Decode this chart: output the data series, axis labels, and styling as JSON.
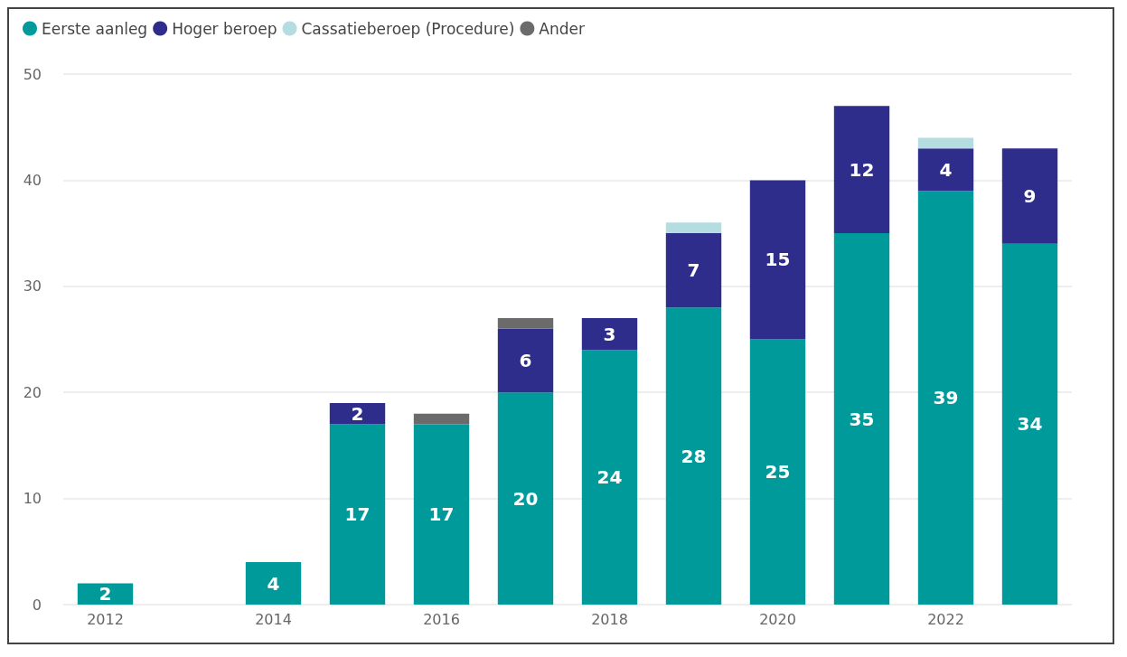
{
  "chart_data": {
    "type": "bar",
    "stacked": true,
    "categories": [
      "2012",
      null,
      "2014",
      null,
      "2016",
      null,
      "2018",
      null,
      "2020",
      null,
      "2022",
      null
    ],
    "series": [
      {
        "name": "Eerste aanleg",
        "color": "#009a9a",
        "values": [
          2,
          null,
          4,
          17,
          17,
          20,
          24,
          28,
          25,
          35,
          39,
          34
        ],
        "value_labels": [
          "2",
          null,
          "4",
          "17",
          "17",
          "20",
          "24",
          "28",
          "25",
          "35",
          "39",
          "34"
        ]
      },
      {
        "name": "Hoger beroep",
        "color": "#2e2d8c",
        "values": [
          null,
          null,
          null,
          2,
          null,
          6,
          3,
          7,
          15,
          12,
          4,
          9
        ],
        "value_labels": [
          null,
          null,
          null,
          "2",
          null,
          "6",
          "3",
          "7",
          "15",
          "12",
          "4",
          "9"
        ]
      },
      {
        "name": "Cassatieberoep (Procedure)",
        "color": "#b3dde0",
        "values": [
          null,
          null,
          null,
          null,
          null,
          null,
          null,
          1,
          null,
          null,
          1,
          null
        ]
      },
      {
        "name": "Ander",
        "color": "#6b6b6b",
        "values": [
          null,
          null,
          null,
          null,
          1,
          1,
          null,
          null,
          null,
          null,
          null,
          null
        ]
      }
    ],
    "ylim": [
      0,
      50
    ],
    "yticks": [
      0,
      10,
      20,
      30,
      40,
      50
    ],
    "grid": "y",
    "legend": "top left"
  }
}
